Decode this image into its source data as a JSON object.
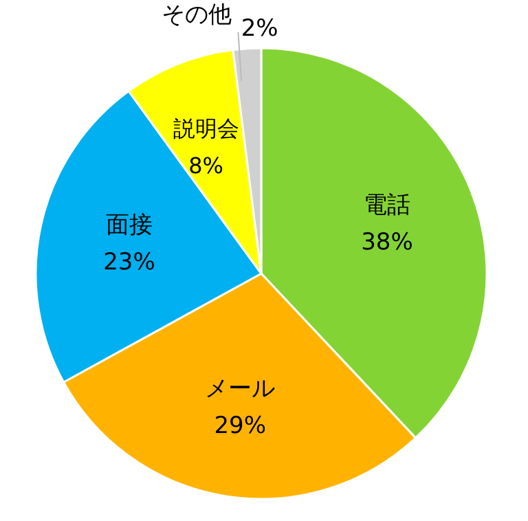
{
  "chart_data": {
    "type": "pie",
    "categories": [
      "電話",
      "メール",
      "面接",
      "説明会",
      "その他"
    ],
    "values": [
      38,
      29,
      23,
      8,
      2
    ],
    "value_labels": [
      "38%",
      "29%",
      "23%",
      "8%",
      "2%"
    ],
    "colors": [
      "#84d335",
      "#ffb300",
      "#00b0f0",
      "#ffff00",
      "#d0d0d0"
    ]
  }
}
